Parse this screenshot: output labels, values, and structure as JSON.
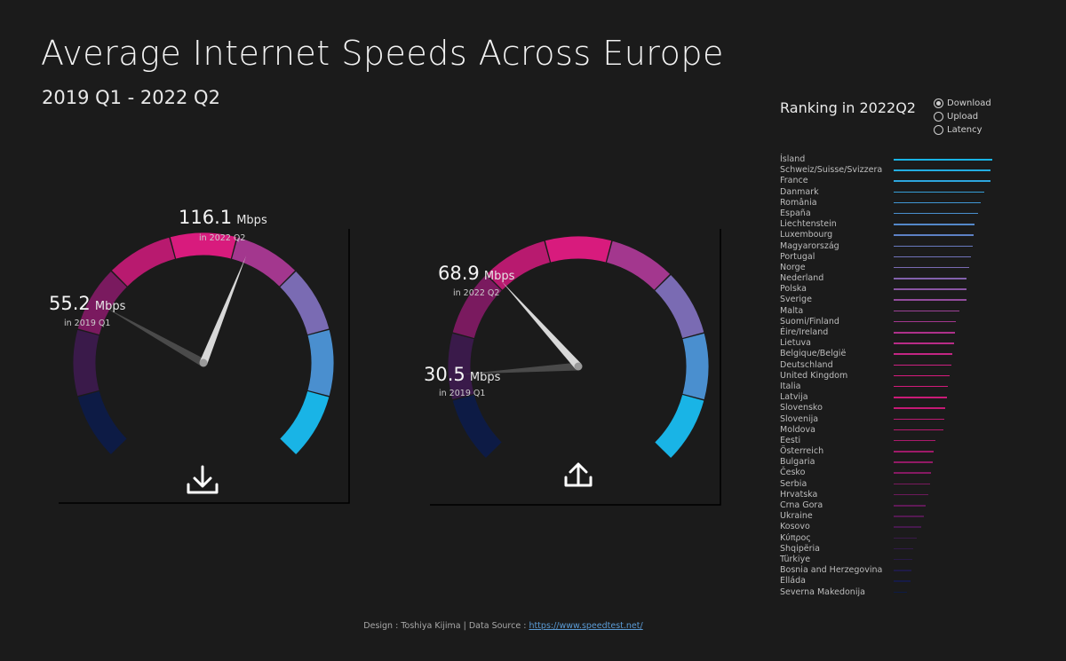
{
  "header": {
    "title": "Average Internet Speeds Across Europe",
    "subtitle": "2019 Q1 - 2022 Q2"
  },
  "colors": {
    "background": "#1b1b1b",
    "gauge_segments": [
      "#0d1b45",
      "#3a1a4a",
      "#7a1a5f",
      "#b81a6f",
      "#d81b7d",
      "#a3378e",
      "#7a6bb3",
      "#4a8fcf",
      "#19b4e6"
    ],
    "needle_current": "#d8d8d8",
    "needle_previous": "#4a4a4a"
  },
  "chart_data": [
    {
      "type": "gauge",
      "name": "download",
      "icon": "download-icon",
      "range": [
        0,
        200
      ],
      "unit": "Mbps",
      "readings": [
        {
          "value": 116.1,
          "value_label": "116.1",
          "unit": "Mbps",
          "period_label": "in 2022 Q2"
        },
        {
          "value": 55.2,
          "value_label": "55.2",
          "unit": "Mbps",
          "period_label": "in 2019 Q1"
        }
      ]
    },
    {
      "type": "gauge",
      "name": "upload",
      "icon": "upload-icon",
      "range": [
        0,
        200
      ],
      "unit": "Mbps",
      "readings": [
        {
          "value": 68.9,
          "value_label": "68.9",
          "unit": "Mbps",
          "period_label": "in 2022 Q2"
        },
        {
          "value": 30.5,
          "value_label": "30.5",
          "unit": "Mbps",
          "period_label": "in 2019 Q1"
        }
      ]
    },
    {
      "type": "bar",
      "name": "ranking",
      "title": "Ranking in 2022Q2",
      "categories": [
        "Ísland",
        "Schweiz/Suisse/Svizzera",
        "France",
        "Danmark",
        "România",
        "España",
        "Liechtenstein",
        "Luxembourg",
        "Magyarország",
        "Portugal",
        "Norge",
        "Nederland",
        "Polska",
        "Sverige",
        "Malta",
        "Suomi/Finland",
        "Éire/Ireland",
        "Lietuva",
        "Belgique/België",
        "Deutschland",
        "United Kingdom",
        "Italia",
        "Latvija",
        "Slovensko",
        "Slovenija",
        "Moldova",
        "Eesti",
        "Österreich",
        "Bulgaria",
        "Česko",
        "Serbia",
        "Hrvatska",
        "Crna Gora",
        "Ukraine",
        "Kosovo",
        "Κύπρος",
        "Shqipëria",
        "Türkiye",
        "Bosnia and Herzegovina",
        "Elláda",
        "Severna Makedonija"
      ],
      "values": [
        210,
        207,
        207,
        192,
        185,
        180,
        173,
        170,
        168,
        165,
        160,
        155,
        155,
        155,
        140,
        133,
        130,
        128,
        125,
        122,
        120,
        115,
        113,
        110,
        107,
        105,
        88,
        85,
        83,
        80,
        77,
        73,
        68,
        65,
        58,
        50,
        42,
        40,
        38,
        36,
        28
      ],
      "xlim": [
        0,
        210
      ]
    }
  ],
  "controls": {
    "options": [
      {
        "label": "Download",
        "selected": true
      },
      {
        "label": "Upload",
        "selected": false
      },
      {
        "label": "Latency",
        "selected": false
      }
    ]
  },
  "footer": {
    "prefix": "Design : Toshiya Kijima | Data Source : ",
    "link_text": "https://www.speedtest.net/"
  }
}
